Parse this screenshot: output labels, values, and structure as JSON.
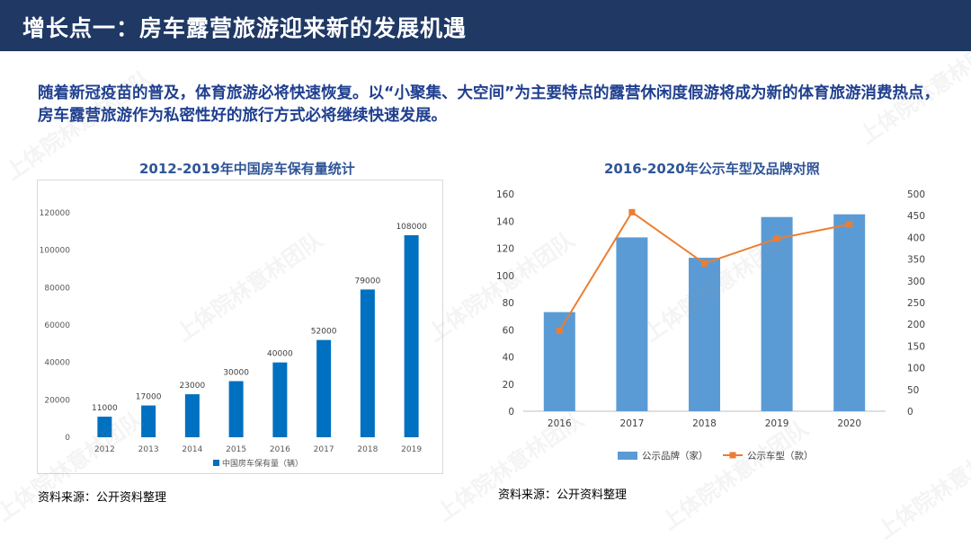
{
  "header": {
    "title": "增长点一：房车露营旅游迎来新的发展机遇"
  },
  "intro": {
    "text": "随着新冠疫苗的普及，体育旅游必将快速恢复。以“小聚集、大空间”为主要特点的露营休闲度假游将成为新的体育旅游消费热点，房车露营旅游作为私密性好的旅行方式必将继续快速发展。"
  },
  "left_chart": {
    "title": "2012-2019年中国房车保有量统计",
    "source": "资料来源：公开资料整理"
  },
  "right_chart": {
    "title": "2016-2020年公示车型及品牌对照",
    "source": "资料来源：公开资料整理"
  },
  "watermark": {
    "text": "上体院林意林团队"
  },
  "colors": {
    "header_bg": "#1f3864",
    "bar_left": "#0070c0",
    "bar_right": "#5b9bd5",
    "line": "#ed7d31",
    "title": "#2f5597"
  },
  "chart_data": [
    {
      "type": "bar",
      "title": "2012-2019年中国房车保有量统计",
      "categories": [
        "2012",
        "2013",
        "2014",
        "2015",
        "2016",
        "2017",
        "2018",
        "2019"
      ],
      "series": [
        {
          "name": "中国房车保有量（辆）",
          "values": [
            11000,
            17000,
            23000,
            30000,
            40000,
            52000,
            79000,
            108000
          ]
        }
      ],
      "ylim": [
        0,
        120000
      ],
      "yticks": [
        0,
        20000,
        40000,
        60000,
        80000,
        100000,
        120000
      ],
      "data_labels": true,
      "legend": "bottom",
      "grid": false
    },
    {
      "type": "bar",
      "title": "2016-2020年公示车型及品牌对照",
      "categories": [
        "2016",
        "2017",
        "2018",
        "2019",
        "2020"
      ],
      "series": [
        {
          "name": "公示品牌（家）",
          "type": "bar",
          "axis": "left",
          "values": [
            73,
            128,
            113,
            143,
            145
          ]
        },
        {
          "name": "公示车型（款）",
          "type": "line",
          "axis": "right",
          "values": [
            185,
            458,
            340,
            397,
            430
          ]
        }
      ],
      "ylim": [
        0,
        160
      ],
      "yticks": [
        0,
        20,
        40,
        60,
        80,
        100,
        120,
        140,
        160
      ],
      "y2lim": [
        0,
        500
      ],
      "y2ticks": [
        0,
        50,
        100,
        150,
        200,
        250,
        300,
        350,
        400,
        450,
        500
      ],
      "legend": "bottom",
      "grid": false
    }
  ]
}
